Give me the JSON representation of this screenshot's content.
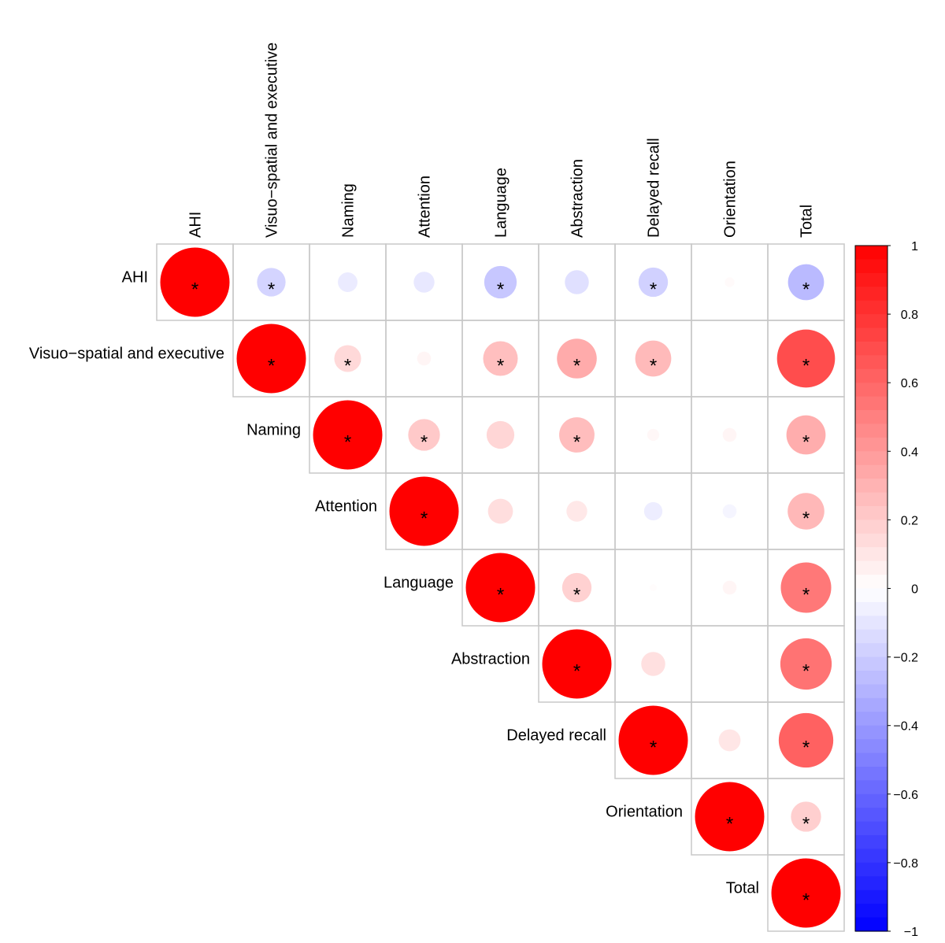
{
  "chart_data": {
    "type": "heatmap",
    "subtype": "correlation-circle-upper",
    "variables": [
      "AHI",
      "Visuo−spatial and executive",
      "Naming",
      "Attention",
      "Language",
      "Abstraction",
      "Delayed recall",
      "Orientation",
      "Total"
    ],
    "matrix": [
      [
        1.0,
        -0.17,
        -0.08,
        -0.09,
        -0.22,
        -0.12,
        -0.18,
        0.02,
        -0.27
      ],
      [
        null,
        1.0,
        0.15,
        0.04,
        0.25,
        0.33,
        0.27,
        0.0,
        0.7
      ],
      [
        null,
        null,
        1.0,
        0.21,
        0.16,
        0.26,
        0.03,
        0.04,
        0.32
      ],
      [
        null,
        null,
        null,
        1.0,
        0.13,
        0.09,
        -0.07,
        -0.04,
        0.28
      ],
      [
        null,
        null,
        null,
        null,
        1.0,
        0.18,
        0.01,
        0.04,
        0.53
      ],
      [
        null,
        null,
        null,
        null,
        null,
        1.0,
        0.12,
        0.0,
        0.55
      ],
      [
        null,
        null,
        null,
        null,
        null,
        null,
        1.0,
        0.1,
        0.62
      ],
      [
        null,
        null,
        null,
        null,
        null,
        null,
        null,
        1.0,
        0.19
      ],
      [
        null,
        null,
        null,
        null,
        null,
        null,
        null,
        null,
        1.0
      ]
    ],
    "significant": [
      [
        1,
        1,
        0,
        0,
        1,
        0,
        1,
        0,
        1
      ],
      [
        0,
        1,
        1,
        0,
        1,
        1,
        1,
        0,
        1
      ],
      [
        0,
        0,
        1,
        1,
        0,
        1,
        0,
        0,
        1
      ],
      [
        0,
        0,
        0,
        1,
        0,
        0,
        0,
        0,
        1
      ],
      [
        0,
        0,
        0,
        0,
        1,
        1,
        0,
        0,
        1
      ],
      [
        0,
        0,
        0,
        0,
        0,
        1,
        0,
        0,
        1
      ],
      [
        0,
        0,
        0,
        0,
        0,
        0,
        1,
        0,
        1
      ],
      [
        0,
        0,
        0,
        0,
        0,
        0,
        0,
        1,
        1
      ],
      [
        0,
        0,
        0,
        0,
        0,
        0,
        0,
        0,
        1
      ]
    ],
    "significance_marker": "*",
    "colorbar": {
      "range": [
        -1,
        1
      ],
      "ticks": [
        "1",
        "0.8",
        "0.6",
        "0.4",
        "0.2",
        "0",
        "−0.2",
        "−0.4",
        "−0.6",
        "−0.8",
        "−1"
      ],
      "tick_values": [
        1,
        0.8,
        0.6,
        0.4,
        0.2,
        0,
        -0.2,
        -0.4,
        -0.6,
        -0.8,
        -1
      ],
      "low_color": "#0000FF",
      "mid_color": "#FFFFFF",
      "high_color": "#FF0000"
    },
    "grid": true,
    "grid_color": "#C8C8C8",
    "legend_position": "right",
    "title": "",
    "xlabel": "",
    "ylabel": ""
  }
}
